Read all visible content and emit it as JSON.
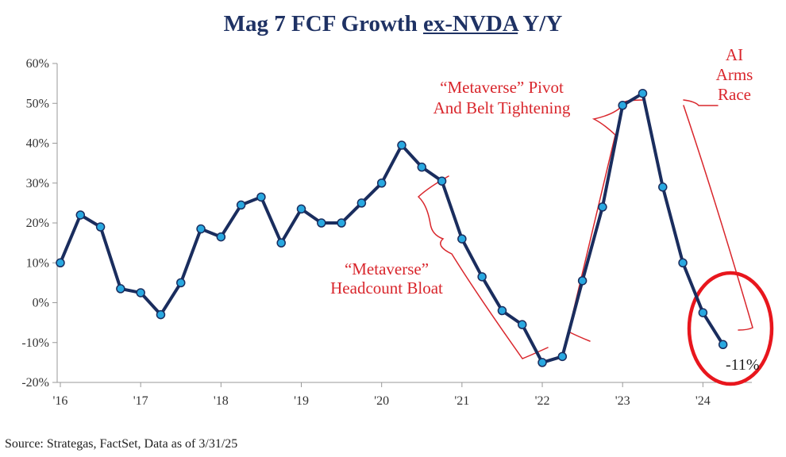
{
  "chart_data": {
    "type": "line",
    "title_parts": [
      "Mag 7 FCF Growth ",
      "ex-NVDA",
      " Y/Y"
    ],
    "xlabel": "",
    "ylabel": "",
    "ylim": [
      -20,
      60
    ],
    "y_ticks": [
      -20,
      -10,
      0,
      10,
      20,
      30,
      40,
      50,
      60
    ],
    "y_tick_labels": [
      "-20%",
      "-10%",
      "0%",
      "10%",
      "20%",
      "30%",
      "40%",
      "50%",
      "60%"
    ],
    "x_tick_labels": [
      "'16",
      "'17",
      "'18",
      "'19",
      "'20",
      "'21",
      "'22",
      "'23",
      "'24"
    ],
    "x_tick_values": [
      2016,
      2017,
      2018,
      2019,
      2020,
      2021,
      2022,
      2023,
      2024
    ],
    "xlim": [
      2016,
      2024.55
    ],
    "series": [
      {
        "name": "Mag 7 FCF Growth ex-NVDA Y/Y",
        "color": "#1a2d5e",
        "marker_color": "#29a8e0",
        "x": [
          2016.0,
          2016.25,
          2016.5,
          2016.75,
          2017.0,
          2017.25,
          2017.5,
          2017.75,
          2018.0,
          2018.25,
          2018.5,
          2018.75,
          2019.0,
          2019.25,
          2019.5,
          2019.75,
          2020.0,
          2020.25,
          2020.5,
          2020.75,
          2021.0,
          2021.25,
          2021.5,
          2021.75,
          2022.0,
          2022.25,
          2022.5,
          2022.75,
          2023.0,
          2023.25,
          2023.5,
          2023.75,
          2024.0,
          2024.25
        ],
        "values": [
          10,
          22,
          19,
          3.5,
          2.5,
          -3,
          5,
          18.5,
          16.5,
          24.5,
          26.5,
          15,
          23.5,
          20,
          20,
          25,
          30,
          39.5,
          34,
          30.5,
          16,
          6.5,
          -2,
          -5.5,
          -15,
          -13.5,
          5.5,
          24,
          49.5,
          52.5,
          29,
          10,
          -2.5,
          -10.5
        ]
      }
    ],
    "annotations": {
      "headcount": [
        "“Metaverse”",
        "Headcount Bloat"
      ],
      "pivot": [
        "“Metaverse” Pivot",
        "And Belt Tightening"
      ],
      "ai": [
        "AI",
        "Arms",
        "Race"
      ],
      "end_value_label": "-11%"
    },
    "annotation_color": "#d9262c",
    "source": "Source: Strategas, FactSet, Data as of 3/31/25"
  }
}
